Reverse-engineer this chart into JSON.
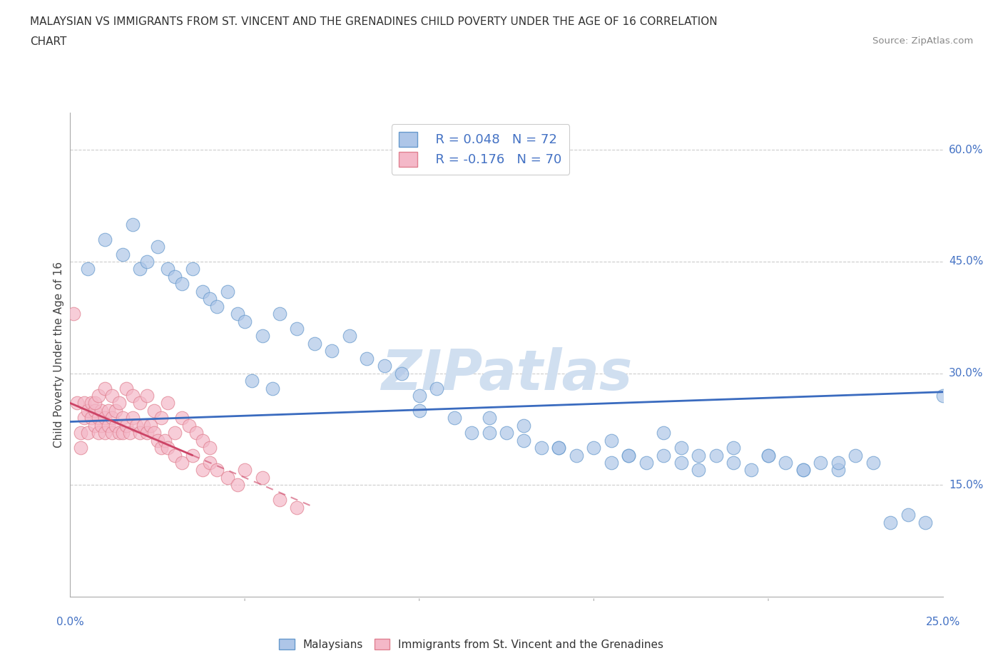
{
  "title_line1": "MALAYSIAN VS IMMIGRANTS FROM ST. VINCENT AND THE GRENADINES CHILD POVERTY UNDER THE AGE OF 16 CORRELATION",
  "title_line2": "CHART",
  "source_text": "Source: ZipAtlas.com",
  "ylabel": "Child Poverty Under the Age of 16",
  "r_malaysian": "R = 0.048",
  "n_malaysian": "N = 72",
  "r_immigrant": "R = -0.176",
  "n_immigrant": "N = 70",
  "legend_label_malaysian": "Malaysians",
  "legend_label_immigrant": "Immigrants from St. Vincent and the Grenadines",
  "color_malaysian": "#aec6e8",
  "color_immigrant": "#f4b8c8",
  "color_malaysian_edge": "#6699cc",
  "color_immigrant_edge": "#e08090",
  "color_malaysian_line": "#3a6bbf",
  "color_immigrant_line": "#cc4466",
  "color_axis": "#4472c4",
  "watermark_text": "ZIPatlas",
  "watermark_color": "#d0dff0",
  "xmin": 0.0,
  "xmax": 0.25,
  "ymin": 0.0,
  "ymax": 0.65,
  "ytick_vals": [
    0.15,
    0.3,
    0.45,
    0.6
  ],
  "ytick_labels": [
    "15.0%",
    "30.0%",
    "45.0%",
    "60.0%"
  ],
  "xtick_labels": [
    "0.0%",
    "25.0%"
  ],
  "malaysian_x": [
    0.005,
    0.01,
    0.015,
    0.018,
    0.02,
    0.022,
    0.025,
    0.028,
    0.03,
    0.032,
    0.035,
    0.038,
    0.04,
    0.042,
    0.045,
    0.048,
    0.05,
    0.055,
    0.06,
    0.065,
    0.07,
    0.075,
    0.08,
    0.085,
    0.09,
    0.095,
    0.1,
    0.1,
    0.105,
    0.11,
    0.115,
    0.12,
    0.125,
    0.13,
    0.135,
    0.14,
    0.145,
    0.15,
    0.155,
    0.16,
    0.165,
    0.17,
    0.175,
    0.18,
    0.185,
    0.19,
    0.195,
    0.2,
    0.205,
    0.21,
    0.215,
    0.22,
    0.225,
    0.23,
    0.235,
    0.24,
    0.245,
    0.25,
    0.052,
    0.058,
    0.12,
    0.13,
    0.14,
    0.155,
    0.16,
    0.17,
    0.175,
    0.18,
    0.19,
    0.2,
    0.21,
    0.22
  ],
  "malaysian_y": [
    0.44,
    0.48,
    0.46,
    0.5,
    0.44,
    0.45,
    0.47,
    0.44,
    0.43,
    0.42,
    0.44,
    0.41,
    0.4,
    0.39,
    0.41,
    0.38,
    0.37,
    0.35,
    0.38,
    0.36,
    0.34,
    0.33,
    0.35,
    0.32,
    0.31,
    0.3,
    0.27,
    0.25,
    0.28,
    0.24,
    0.22,
    0.24,
    0.22,
    0.21,
    0.2,
    0.2,
    0.19,
    0.2,
    0.18,
    0.19,
    0.18,
    0.19,
    0.18,
    0.17,
    0.19,
    0.18,
    0.17,
    0.19,
    0.18,
    0.17,
    0.18,
    0.17,
    0.19,
    0.18,
    0.1,
    0.11,
    0.1,
    0.27,
    0.29,
    0.28,
    0.22,
    0.23,
    0.2,
    0.21,
    0.19,
    0.22,
    0.2,
    0.19,
    0.2,
    0.19,
    0.17,
    0.18
  ],
  "immigrant_x": [
    0.001,
    0.002,
    0.003,
    0.003,
    0.004,
    0.004,
    0.005,
    0.005,
    0.006,
    0.006,
    0.007,
    0.007,
    0.008,
    0.008,
    0.009,
    0.009,
    0.01,
    0.01,
    0.011,
    0.011,
    0.012,
    0.012,
    0.013,
    0.013,
    0.014,
    0.015,
    0.015,
    0.016,
    0.017,
    0.018,
    0.019,
    0.02,
    0.021,
    0.022,
    0.023,
    0.024,
    0.025,
    0.026,
    0.027,
    0.028,
    0.03,
    0.032,
    0.035,
    0.038,
    0.04,
    0.042,
    0.045,
    0.048,
    0.05,
    0.055,
    0.06,
    0.065,
    0.007,
    0.008,
    0.01,
    0.012,
    0.014,
    0.016,
    0.018,
    0.02,
    0.022,
    0.024,
    0.026,
    0.028,
    0.03,
    0.032,
    0.034,
    0.036,
    0.038,
    0.04
  ],
  "immigrant_y": [
    0.38,
    0.26,
    0.22,
    0.2,
    0.24,
    0.26,
    0.22,
    0.25,
    0.24,
    0.26,
    0.23,
    0.25,
    0.22,
    0.24,
    0.23,
    0.25,
    0.22,
    0.24,
    0.23,
    0.25,
    0.22,
    0.24,
    0.23,
    0.25,
    0.22,
    0.24,
    0.22,
    0.23,
    0.22,
    0.24,
    0.23,
    0.22,
    0.23,
    0.22,
    0.23,
    0.22,
    0.21,
    0.2,
    0.21,
    0.2,
    0.19,
    0.18,
    0.19,
    0.17,
    0.18,
    0.17,
    0.16,
    0.15,
    0.17,
    0.16,
    0.13,
    0.12,
    0.26,
    0.27,
    0.28,
    0.27,
    0.26,
    0.28,
    0.27,
    0.26,
    0.27,
    0.25,
    0.24,
    0.26,
    0.22,
    0.24,
    0.23,
    0.22,
    0.21,
    0.2
  ],
  "malaysian_trend_x": [
    0.0,
    0.25
  ],
  "malaysian_trend_y": [
    0.235,
    0.275
  ],
  "immigrant_trend_x": [
    0.0,
    0.07
  ],
  "immigrant_trend_y": [
    0.26,
    0.12
  ]
}
